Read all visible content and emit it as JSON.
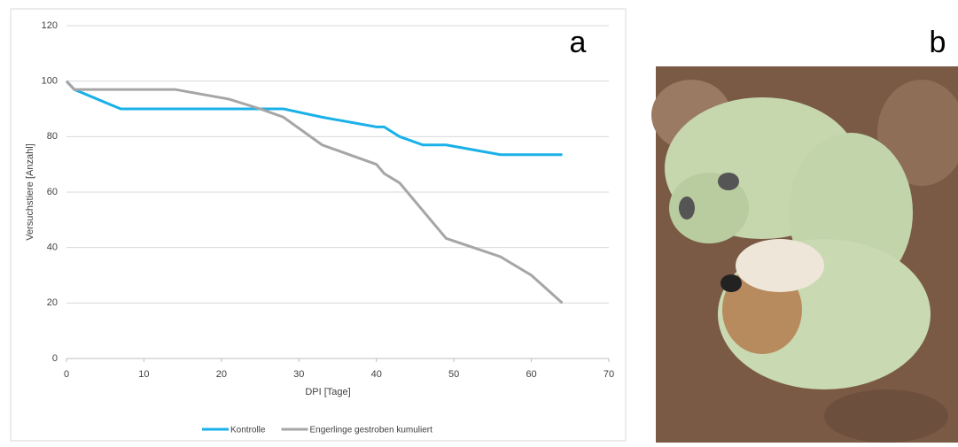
{
  "chart_data": {
    "type": "line",
    "panel_label": "a",
    "xlabel": "DPI [Tage]",
    "ylabel": "Versuchstiere [Anzahl]",
    "xlim": [
      0,
      70
    ],
    "xticks": [
      0,
      10,
      20,
      30,
      40,
      50,
      60,
      70
    ],
    "ylim": [
      0,
      120
    ],
    "yticks": [
      0,
      20,
      40,
      60,
      80,
      100,
      120
    ],
    "grid": true,
    "legend": "bottom",
    "series": [
      {
        "name": "Kontrolle",
        "color": "#1ab0e8",
        "x": [
          0,
          1,
          7,
          28,
          33,
          40,
          41,
          43,
          46,
          49,
          56,
          64
        ],
        "values": [
          100,
          97,
          90,
          90,
          87,
          83.5,
          83.5,
          80,
          77,
          77,
          73.5,
          73.5
        ]
      },
      {
        "name": "Engerlinge gestroben kumuliert",
        "color": "#a6a6a6",
        "x": [
          0,
          1,
          14,
          21,
          25,
          28,
          33,
          40,
          41,
          43,
          49,
          56,
          60,
          64
        ],
        "values": [
          100,
          97,
          97,
          93.5,
          90,
          87,
          77,
          70,
          66.7,
          63.3,
          43.3,
          36.7,
          30,
          20
        ]
      }
    ]
  },
  "photo": {
    "panel_label": "b"
  }
}
